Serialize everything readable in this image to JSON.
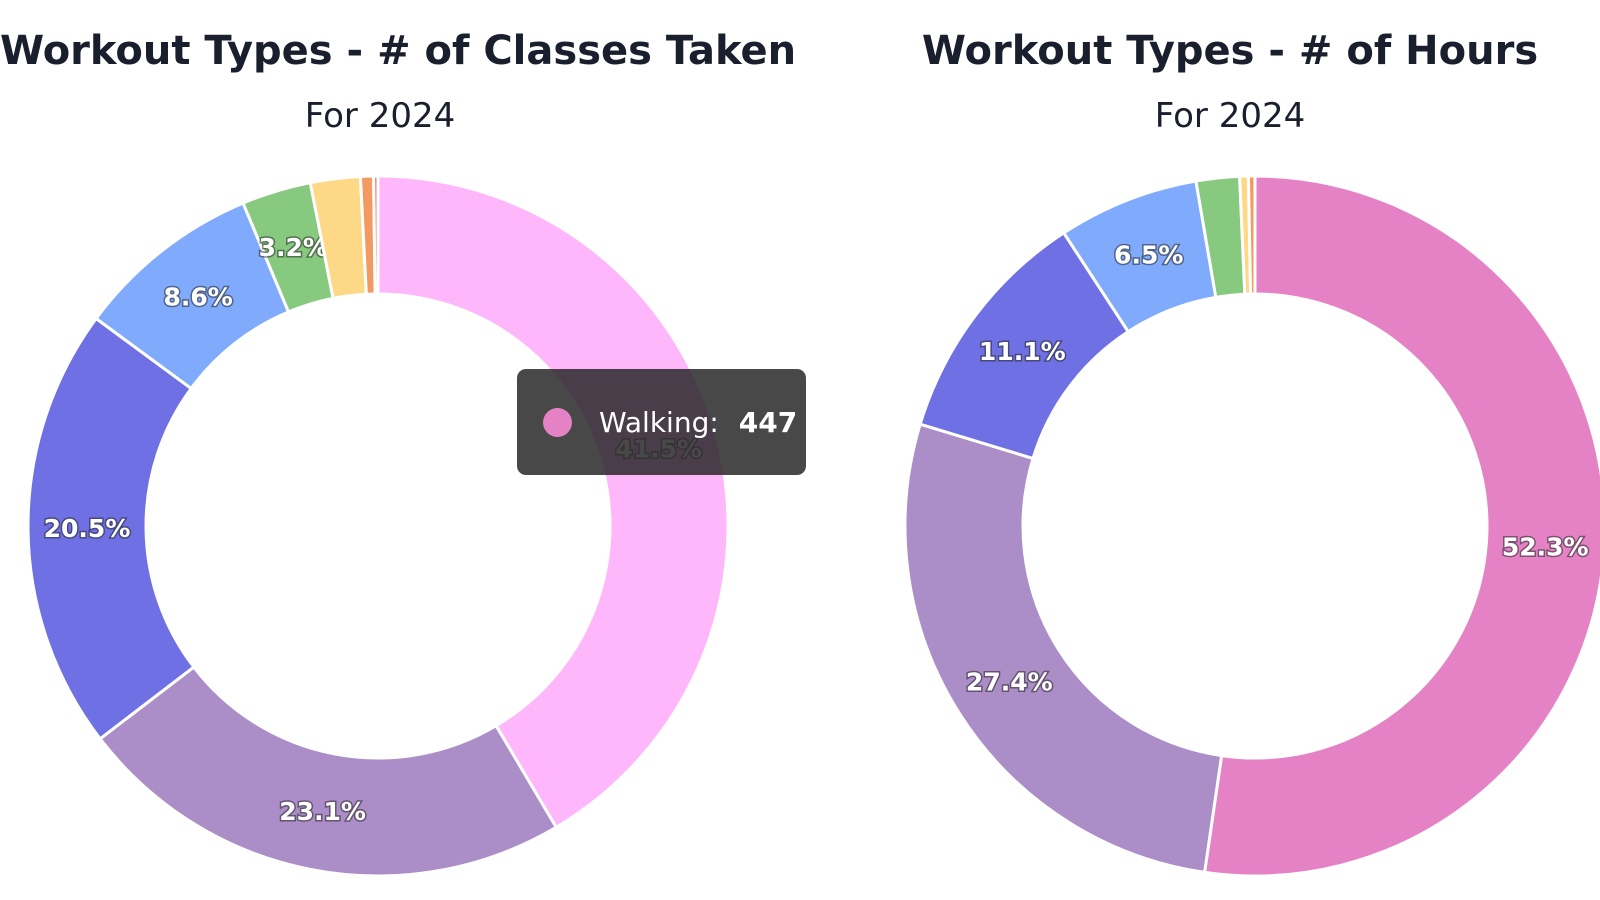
{
  "chart_data": [
    {
      "type": "pie",
      "title": "Workout Types - # of Classes Taken",
      "subtitle": "For 2024",
      "slices": [
        {
          "value": 41.5,
          "label": "41.5%",
          "color": "#ffb7fc"
        },
        {
          "value": 23.1,
          "label": "23.1%",
          "color": "#ab8dc7"
        },
        {
          "value": 20.5,
          "label": "20.5%",
          "color": "#6e70e4"
        },
        {
          "value": 8.6,
          "label": "8.6%",
          "color": "#80abfc"
        },
        {
          "value": 3.2,
          "label": "3.2%",
          "color": "#86c97f"
        },
        {
          "value": 2.3,
          "label": "",
          "color": "#fdd987"
        },
        {
          "value": 0.6,
          "label": "",
          "color": "#f29a5f"
        },
        {
          "value": 0.2,
          "label": "",
          "color": "#f07c7c"
        }
      ]
    },
    {
      "type": "pie",
      "title": "Workout Types - # of Hours",
      "subtitle": "For 2024",
      "slices": [
        {
          "value": 52.3,
          "label": "52.3%",
          "color": "#e582c6"
        },
        {
          "value": 27.4,
          "label": "27.4%",
          "color": "#ab8dc7"
        },
        {
          "value": 11.1,
          "label": "11.1%",
          "color": "#6e70e4"
        },
        {
          "value": 6.5,
          "label": "6.5%",
          "color": "#80abfc"
        },
        {
          "value": 2.0,
          "label": "",
          "color": "#86c97f"
        },
        {
          "value": 0.4,
          "label": "",
          "color": "#fdd987"
        },
        {
          "value": 0.3,
          "label": "",
          "color": "#f29a5f"
        }
      ]
    }
  ],
  "tooltip": {
    "label": "Walking:",
    "value": "447",
    "color": "#e582c6"
  }
}
